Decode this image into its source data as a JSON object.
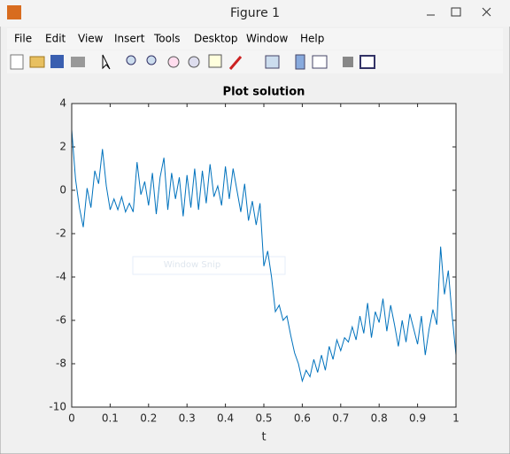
{
  "window": {
    "title": "Figure 1",
    "menu": [
      "File",
      "Edit",
      "View",
      "Insert",
      "Tools",
      "Desktop",
      "Window",
      "Help"
    ],
    "overlay_text": "Window Snip"
  },
  "chart_data": {
    "type": "line",
    "title": "Plot solution",
    "x_label": "t",
    "x": [
      0,
      0.01,
      0.02,
      0.03,
      0.04,
      0.05,
      0.06,
      0.07,
      0.08,
      0.09,
      0.1,
      0.11,
      0.12,
      0.13,
      0.14,
      0.15,
      0.16,
      0.17,
      0.18,
      0.19,
      0.2,
      0.21,
      0.22,
      0.23,
      0.24,
      0.25,
      0.26,
      0.27,
      0.28,
      0.29,
      0.3,
      0.31,
      0.32,
      0.33,
      0.34,
      0.35,
      0.36,
      0.37,
      0.38,
      0.39,
      0.4,
      0.41,
      0.42,
      0.43,
      0.44,
      0.45,
      0.46,
      0.47,
      0.48,
      0.49,
      0.5,
      0.51,
      0.52,
      0.53,
      0.54,
      0.55,
      0.56,
      0.57,
      0.58,
      0.59,
      0.6,
      0.61,
      0.62,
      0.63,
      0.64,
      0.65,
      0.66,
      0.67,
      0.68,
      0.69,
      0.7,
      0.71,
      0.72,
      0.73,
      0.74,
      0.75,
      0.76,
      0.77,
      0.78,
      0.79,
      0.8,
      0.81,
      0.82,
      0.83,
      0.84,
      0.85,
      0.86,
      0.87,
      0.88,
      0.89,
      0.9,
      0.91,
      0.92,
      0.93,
      0.94,
      0.95,
      0.96,
      0.97,
      0.98,
      0.99,
      1
    ],
    "series": [
      {
        "color": "#0072bd",
        "values": [
          2.8,
          0.5,
          -0.8,
          -1.7,
          0.1,
          -0.8,
          0.9,
          0.3,
          1.9,
          0.2,
          -0.9,
          -0.4,
          -0.9,
          -0.3,
          -1.0,
          -0.6,
          -1.0,
          1.3,
          -0.2,
          0.4,
          -0.7,
          0.8,
          -1.1,
          0.6,
          1.5,
          -0.9,
          0.8,
          -0.4,
          0.6,
          -1.2,
          0.7,
          -0.8,
          1.0,
          -0.9,
          0.9,
          -0.6,
          1.2,
          -0.3,
          0.2,
          -0.7,
          1.1,
          -0.4,
          1.0,
          0.0,
          -1.0,
          0.3,
          -1.4,
          -0.5,
          -1.6,
          -0.6,
          -3.5,
          -2.8,
          -4.0,
          -5.6,
          -5.3,
          -6.0,
          -5.8,
          -6.7,
          -7.5,
          -8.0,
          -8.8,
          -8.3,
          -8.6,
          -7.8,
          -8.4,
          -7.6,
          -8.3,
          -7.2,
          -7.8,
          -6.9,
          -7.4,
          -6.8,
          -7.0,
          -6.3,
          -6.9,
          -5.8,
          -6.6,
          -5.2,
          -6.8,
          -5.6,
          -6.1,
          -5.0,
          -6.5,
          -5.3,
          -6.2,
          -7.2,
          -6.0,
          -7.0,
          -5.7,
          -6.4,
          -7.1,
          -5.8,
          -7.6,
          -6.4,
          -5.5,
          -6.2,
          -2.6,
          -4.8,
          -3.7,
          -5.8,
          -7.6
        ]
      }
    ],
    "xlim": [
      0,
      1
    ],
    "xticks": [
      0,
      0.1,
      0.2,
      0.3,
      0.4,
      0.5,
      0.6,
      0.7,
      0.8,
      0.9,
      1
    ],
    "ylim": [
      -10,
      4
    ],
    "yticks": [
      -10,
      -8,
      -6,
      -4,
      -2,
      0,
      2,
      4
    ],
    "grid": false
  }
}
